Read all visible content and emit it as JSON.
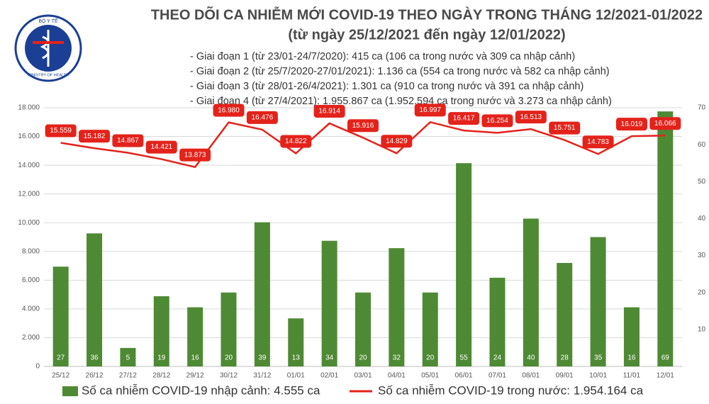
{
  "logo": {
    "top": "BỘ Y TẾ",
    "bottom": "MINISTRY OF HEALTH"
  },
  "chart_data": {
    "type": "bar-line",
    "title": "THEO DÕI CA NHIỄM MỚI COVID-19 THEO NGÀY TRONG THÁNG 12/2021-01/2022",
    "subtitle": "(từ ngày 25/12/2021 đến ngày 12/01/2022)",
    "annotations": [
      "- Giai đoạn 1 (từ 23/01-24/7/2020): 415 ca (106 ca trong nước và 309 ca nhập cảnh)",
      "- Giai đoạn 2 (từ 25/7/2020-27/01/2021): 1.136 ca (554 ca trong nước và 582 ca nhập cảnh)",
      "- Giai đoạn 3 (từ 28/01-26/4/2021): 1.301 ca (910 ca trong nước và 391 ca nhập cảnh)",
      "- Giai đoạn 4 (từ 27/4/2021): 1.955.867 ca (1.952.594 ca trong nước và 3.273 ca nhập cảnh)"
    ],
    "categories": [
      "25/12",
      "26/12",
      "27/12",
      "28/12",
      "29/12",
      "30/12",
      "31/12",
      "01/01",
      "02/01",
      "03/01",
      "04/01",
      "05/01",
      "06/01",
      "07/01",
      "08/01",
      "09/01",
      "10/01",
      "11/01",
      "12/01"
    ],
    "series": [
      {
        "name": "Số ca nhiễm COVID-19 nhập cảnh: 4.555 ca",
        "type": "bar",
        "axis": "y2",
        "color": "#4e8a34",
        "values": [
          27,
          36,
          5,
          19,
          16,
          20,
          39,
          13,
          34,
          20,
          32,
          20,
          55,
          24,
          40,
          28,
          35,
          16,
          69
        ]
      },
      {
        "name": "Số ca nhiễm COVID-19 trong nước: 1.954.164 ca",
        "type": "line",
        "color": "#e3231b",
        "values": [
          15559,
          15182,
          14867,
          14421,
          13873,
          16980,
          16476,
          14822,
          16914,
          15916,
          14829,
          16997,
          16417,
          16254,
          16513,
          15751,
          14783,
          16019,
          16066
        ],
        "value_labels": [
          "15.559",
          "15.182",
          "14.867",
          "14.421",
          "13.873",
          "16.980",
          "16.476",
          "14.822",
          "16.914",
          "15.916",
          "14.829",
          "16.997",
          "16.417",
          "16.254",
          "16.513",
          "15.751",
          "14.783",
          "16.019",
          "16.066"
        ]
      }
    ],
    "ylim": [
      0,
      18000
    ],
    "yticks": [
      0,
      {
        "value": 2000,
        "label": "2.000"
      },
      {
        "value": 4000,
        "label": "4.000"
      },
      {
        "value": 6000,
        "label": "6.000"
      },
      {
        "value": 8000,
        "label": "8.000"
      },
      {
        "value": 10000,
        "label": "10.000"
      },
      {
        "value": 12000,
        "label": "12.000"
      },
      {
        "value": 14000,
        "label": "14.000"
      },
      {
        "value": 16000,
        "label": "16.000"
      },
      {
        "value": 18000,
        "label": "18.000"
      }
    ],
    "y2lim": [
      0,
      70
    ],
    "y2ticks": [
      10,
      20,
      30,
      40,
      50,
      60,
      70
    ],
    "grid": true,
    "legend": "bottom"
  }
}
